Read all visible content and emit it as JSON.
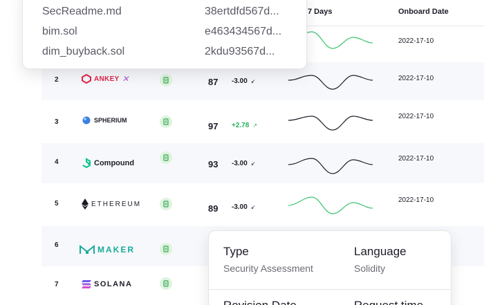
{
  "table": {
    "headers": {
      "days": "7 Days",
      "onboard": "Onboard Date"
    },
    "rows": [
      {
        "rank": "",
        "logo": "",
        "score": "",
        "change": "",
        "date": "2022-17-10",
        "trend": "up"
      },
      {
        "rank": "2",
        "logo": "ANKEY",
        "score": "87",
        "change": "-3.00",
        "date": "2022-17-10",
        "trend": "down"
      },
      {
        "rank": "3",
        "logo": "SPHERIUM",
        "score": "97",
        "change": "+2.78",
        "date": "2022-17-10",
        "trend": "down"
      },
      {
        "rank": "4",
        "logo": "Compound",
        "score": "93",
        "change": "-3.00",
        "date": "2022-17-10",
        "trend": "down"
      },
      {
        "rank": "5",
        "logo": "ETHEREUM",
        "score": "89",
        "change": "-3.00",
        "date": "2022-17-10",
        "trend": "up"
      },
      {
        "rank": "6",
        "logo": "MAKER"
      },
      {
        "rank": "7",
        "logo": "SOLANA"
      }
    ],
    "colors": {
      "positive": "#27b25a",
      "negative": "#1c1c28",
      "sparkline_up": "#3dc46e",
      "sparkline_down": "#1c1c28"
    }
  },
  "files_popup": {
    "files": [
      {
        "name": "SecReadme.md",
        "hash": "38ertdfd567d..."
      },
      {
        "name": "bim.sol",
        "hash": "e463434567d..."
      },
      {
        "name": "dim_buyback.sol",
        "hash": "2kdu93567d..."
      }
    ]
  },
  "info_popup": {
    "type_label": "Type",
    "type_value": "Security Assessment",
    "language_label": "Language",
    "language_value": "Solidity",
    "revision_label": "Revision Date",
    "request_label": "Request time"
  }
}
